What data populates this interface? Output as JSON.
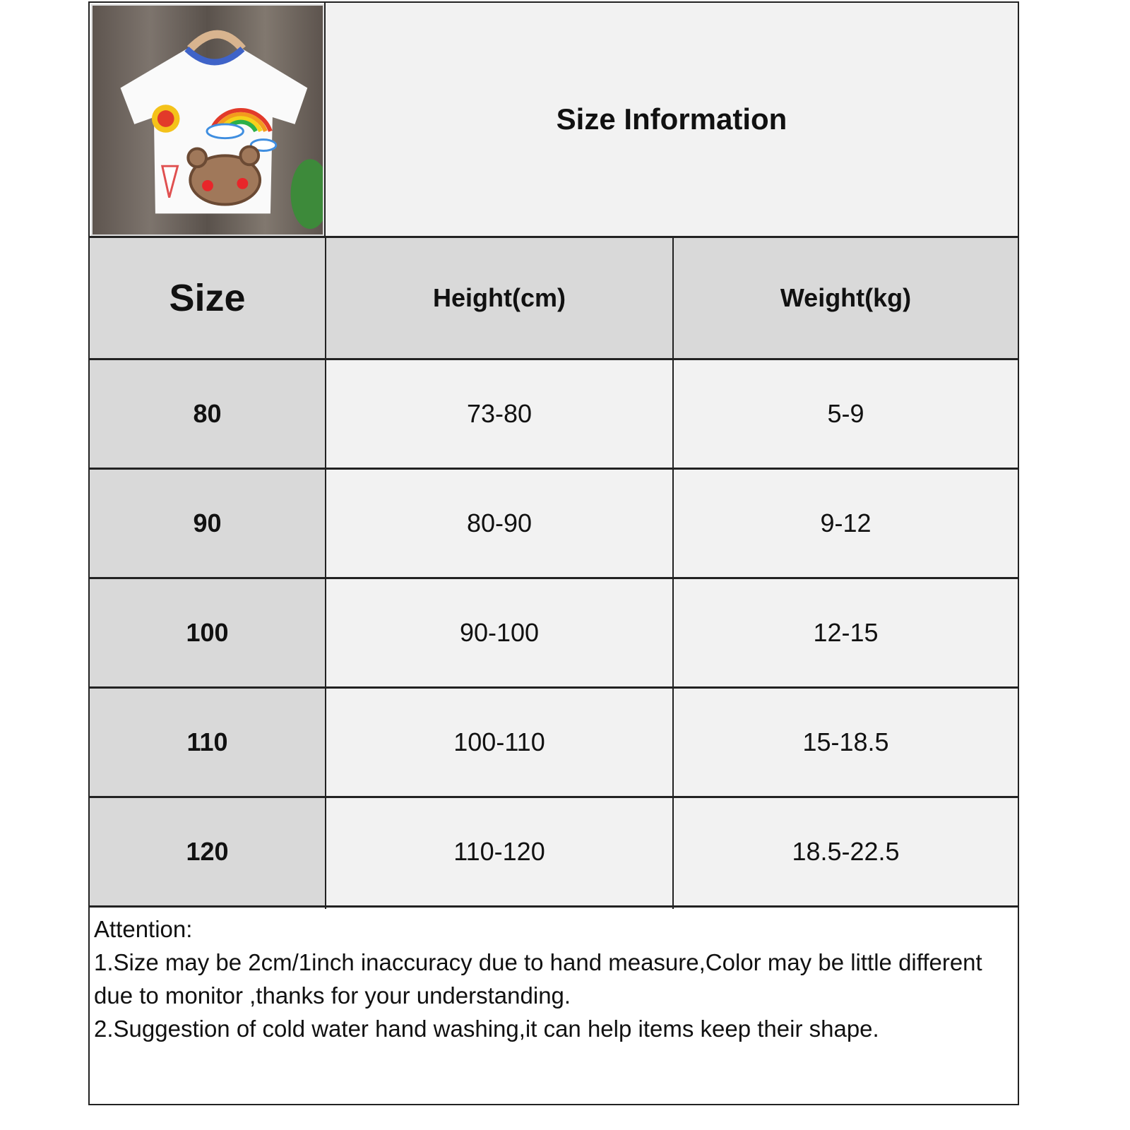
{
  "title": "Size Information",
  "product_image": {
    "icon": "kids-tshirt-photo",
    "description_colors": {
      "shirt": "#ffffff",
      "collar": "#3f63c8",
      "background": "#6f655e"
    }
  },
  "table": {
    "headers": [
      "Size",
      "Height(cm)",
      "Weight(kg)"
    ],
    "rows": [
      [
        "80",
        "73-80",
        "5-9"
      ],
      [
        "90",
        "80-90",
        "9-12"
      ],
      [
        "100",
        "90-100",
        "12-15"
      ],
      [
        "110",
        "100-110",
        "15-18.5"
      ],
      [
        "120",
        "110-120",
        "18.5-22.5"
      ]
    ]
  },
  "attention": {
    "heading": "Attention:",
    "lines": [
      "1.Size may be 2cm/1inch inaccuracy due to hand measure,Color may be little different due to monitor ,thanks for your understanding.",
      "2.Suggestion of cold water hand washing,it can help items keep their shape."
    ]
  },
  "colors": {
    "header_bg": "#d9d9d9",
    "cell_bg": "#f2f2f2",
    "border": "#222222"
  }
}
